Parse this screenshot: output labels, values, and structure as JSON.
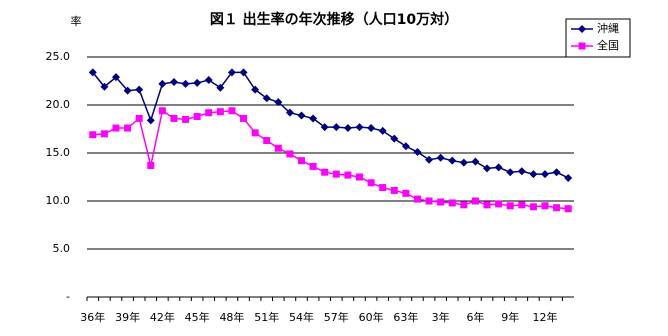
{
  "chart_data": {
    "type": "line",
    "title": "図１ 出生率の年次推移（人口10万対）",
    "y_label": "率",
    "categories": [
      "36年",
      null,
      null,
      "39年",
      null,
      null,
      "42年",
      null,
      null,
      "45年",
      null,
      null,
      "48年",
      null,
      null,
      "51年",
      null,
      null,
      "54年",
      null,
      null,
      "57年",
      null,
      null,
      "60年",
      null,
      null,
      "63年",
      null,
      null,
      "3年",
      null,
      null,
      "6年",
      null,
      null,
      "9年",
      null,
      null,
      "12年",
      null,
      null
    ],
    "series": [
      {
        "name": "沖縄",
        "color": "#000080",
        "marker": "diamond",
        "values": [
          23.4,
          21.9,
          22.9,
          21.5,
          21.6,
          18.4,
          22.2,
          22.4,
          22.2,
          22.3,
          22.6,
          21.8,
          23.4,
          23.4,
          21.6,
          20.7,
          20.3,
          19.2,
          18.9,
          18.6,
          17.7,
          17.7,
          17.6,
          17.7,
          17.6,
          17.3,
          16.5,
          15.7,
          15.1,
          14.3,
          14.5,
          14.2,
          14.0,
          14.1,
          13.4,
          13.5,
          13.0,
          13.1,
          12.8,
          12.8,
          13.0,
          12.4
        ]
      },
      {
        "name": "全国",
        "color": "#ff00ff",
        "marker": "square",
        "values": [
          16.9,
          17.0,
          17.6,
          17.6,
          18.6,
          13.7,
          19.4,
          18.6,
          18.5,
          18.8,
          19.2,
          19.3,
          19.4,
          18.6,
          17.1,
          16.3,
          15.5,
          14.9,
          14.2,
          13.6,
          13.0,
          12.8,
          12.7,
          12.5,
          11.9,
          11.4,
          11.1,
          10.8,
          10.2,
          10.0,
          9.9,
          9.8,
          9.6,
          10.0,
          9.6,
          9.7,
          9.5,
          9.6,
          9.4,
          9.5,
          9.3,
          9.2
        ]
      }
    ],
    "ylim": [
      0,
      25
    ],
    "yticks": [
      {
        "value": 0,
        "label": "-"
      },
      {
        "value": 5,
        "label": "5.0"
      },
      {
        "value": 10,
        "label": "10.0"
      },
      {
        "value": 15,
        "label": "15.0"
      },
      {
        "value": 20,
        "label": "20.0"
      },
      {
        "value": 25,
        "label": "25.0"
      }
    ],
    "grid": true,
    "legend": "top-right"
  }
}
